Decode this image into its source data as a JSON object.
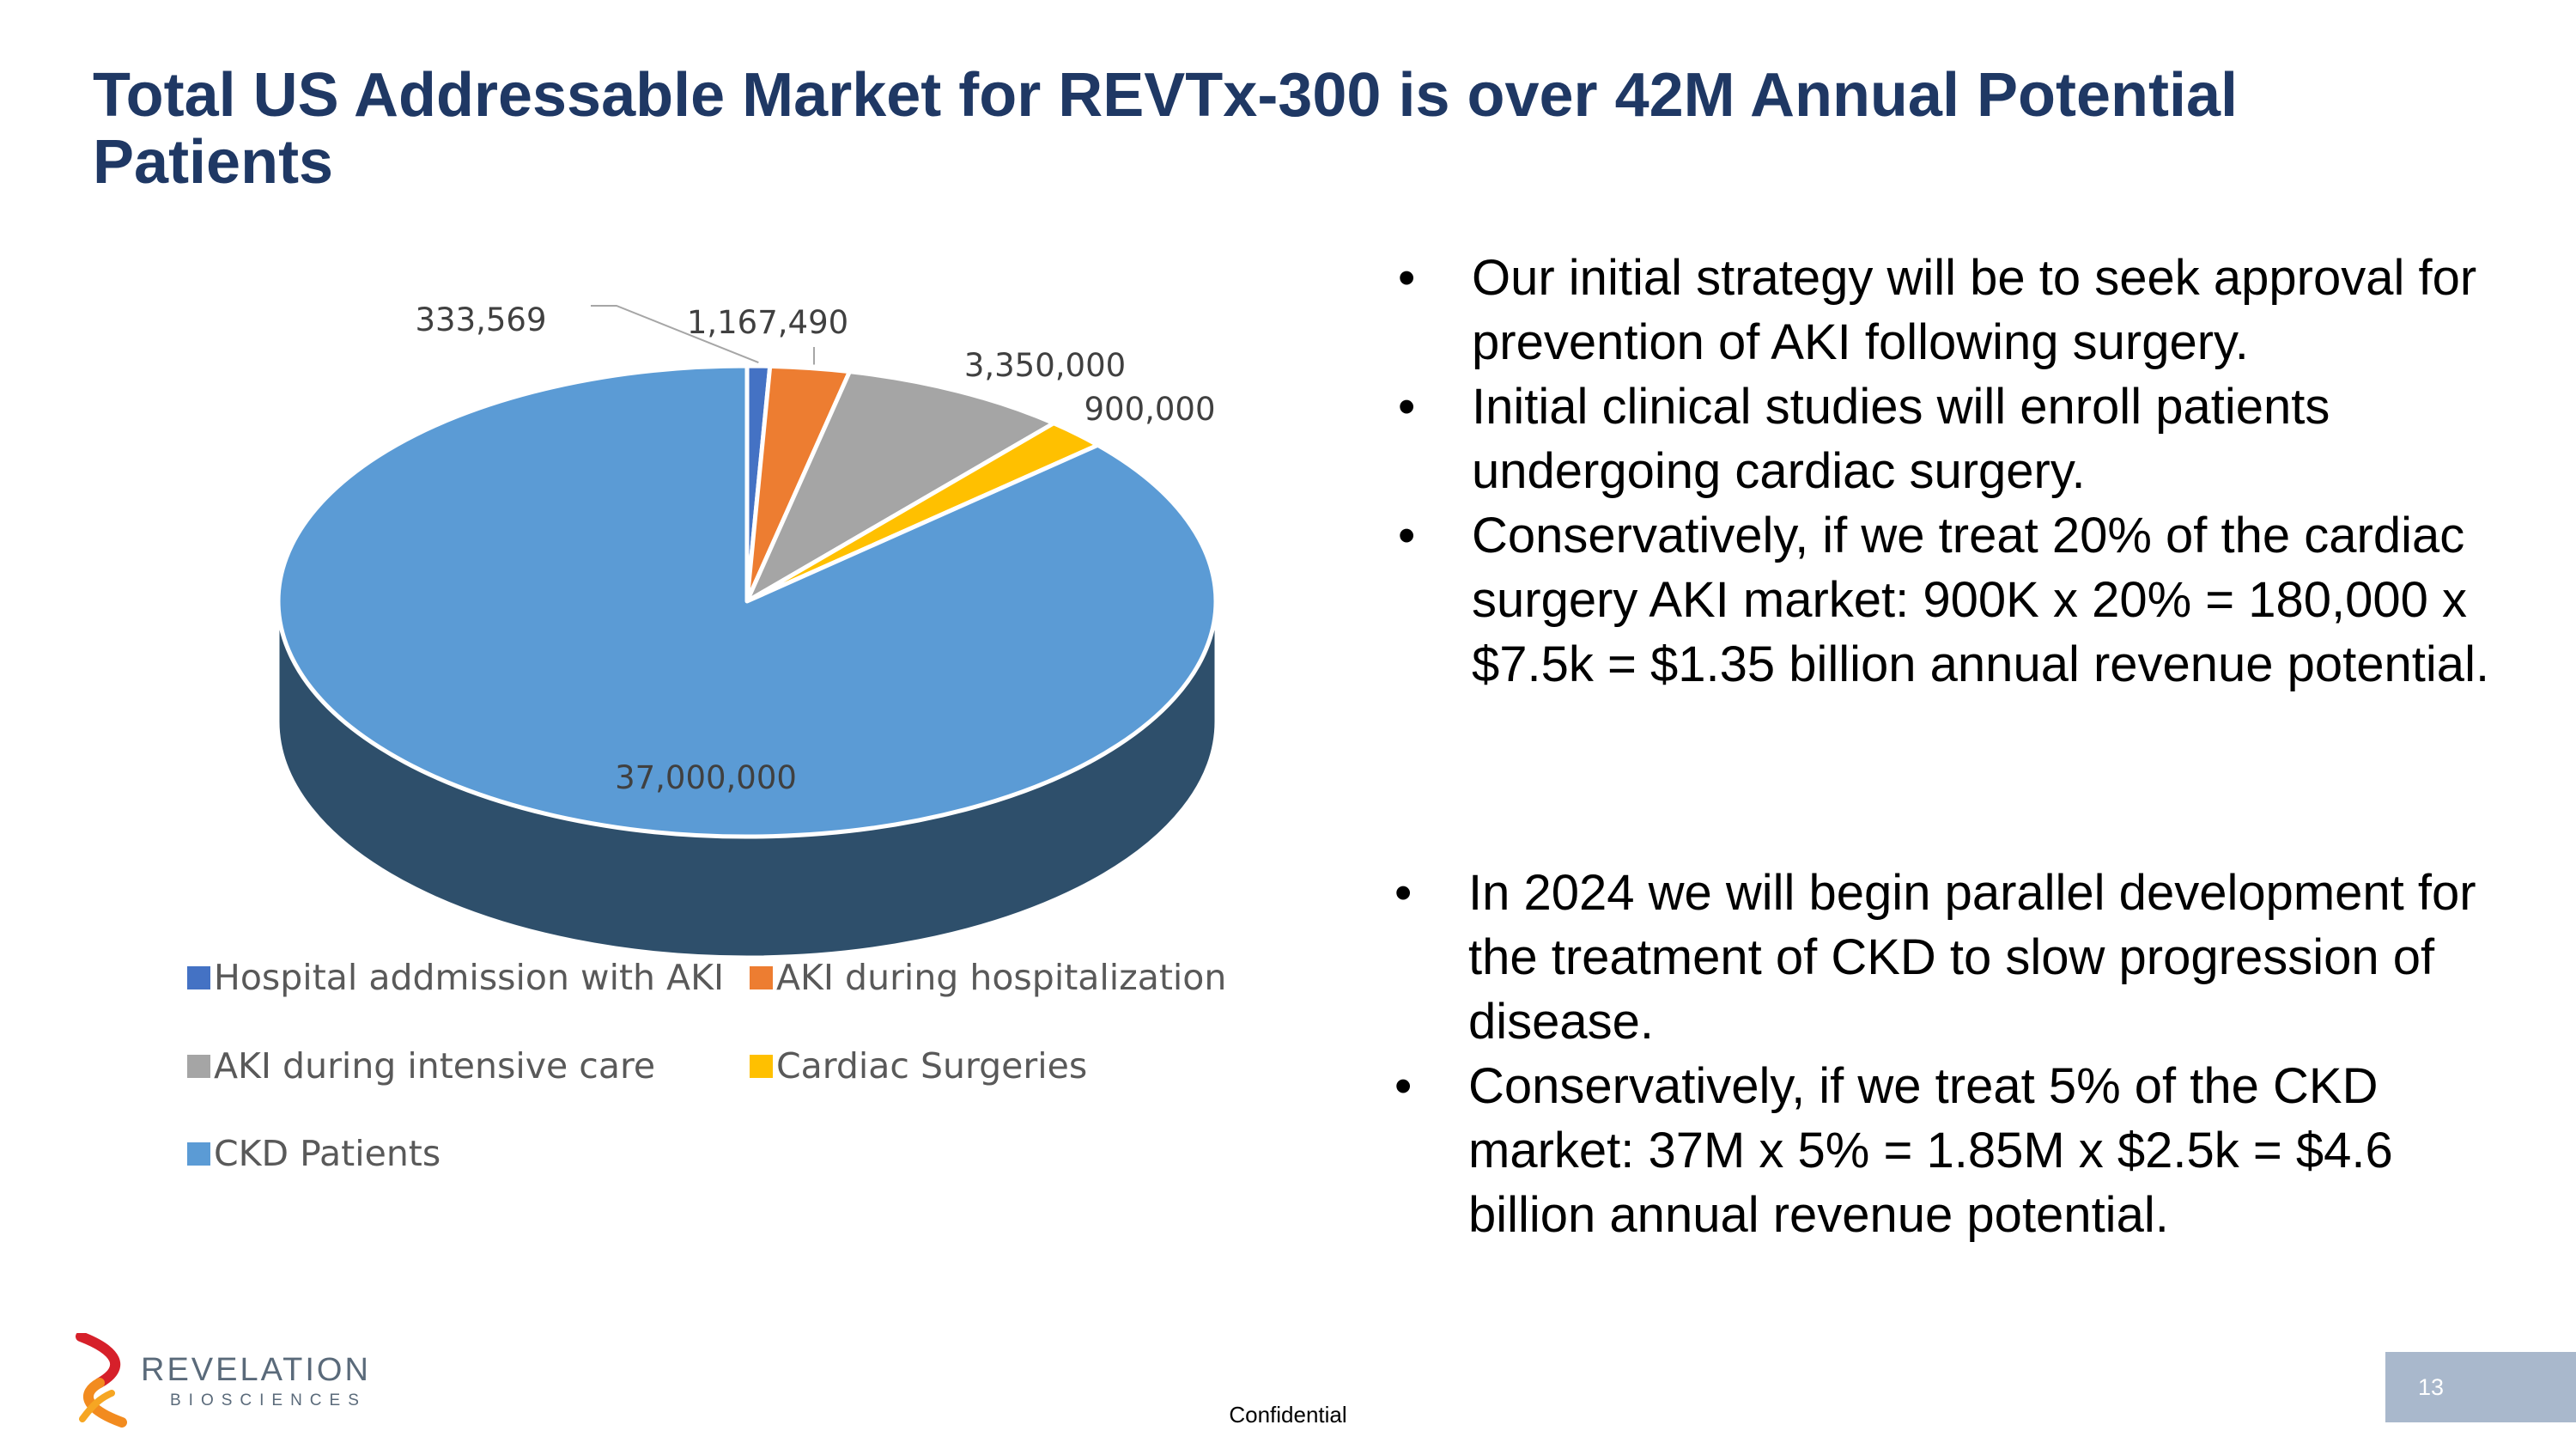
{
  "slide": {
    "title": "Total US Addressable Market for REVTx-300 is over 42M Annual Potential Patients",
    "bullets_top": [
      "Our initial strategy will be to seek approval for prevention of AKI following surgery.",
      "Initial clinical studies will enroll patients undergoing cardiac surgery.",
      "Conservatively, if we treat 20% of the cardiac surgery AKI market: 900K x 20% = 180,000 x $7.5k = $1.35 billion annual revenue potential."
    ],
    "bullets_bottom": [
      "In 2024 we will begin parallel development for the treatment of CKD to slow progression of disease.",
      " Conservatively, if we treat 5% of the CKD market: 37M x 5% = 1.85M x $2.5k = $4.6 billion annual revenue potential."
    ],
    "footer": {
      "logo_name": "REVELATION",
      "logo_sub": "BIOSCIENCES",
      "confidential": "Confidential",
      "page_number": "13"
    }
  },
  "chart_data": {
    "type": "pie",
    "style": "3d",
    "title": "",
    "categories": [
      "Hospital addmission with AKI",
      "AKI during hospitalization",
      "AKI during intensive care",
      "Cardiac Surgeries",
      "CKD Patients"
    ],
    "values": [
      333569,
      1167490,
      3350000,
      900000,
      37000000
    ],
    "data_labels": [
      "333,569",
      "1,167,490",
      "3,350,000",
      "900,000",
      "37,000,000"
    ],
    "colors": [
      "#4472c4",
      "#ed7d31",
      "#a5a5a5",
      "#ffc000",
      "#5b9bd5"
    ],
    "side_color": "#2e4f6b",
    "legend_position": "bottom"
  }
}
